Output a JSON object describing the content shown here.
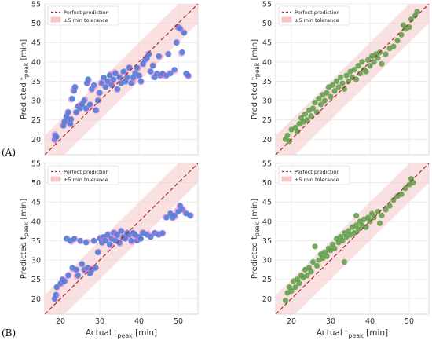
{
  "panel_labels": [
    "(A)",
    "(B)"
  ],
  "chart_data": [
    {
      "type": "scatter",
      "panel": "A",
      "position": "left",
      "xlabel": "",
      "ylabel": "Predicted t_peak [min]",
      "ylabel_main": "Predicted t",
      "ylabel_sub": "peak",
      "ylabel_unit": " [min]",
      "xlim": [
        16,
        55
      ],
      "ylim": [
        16,
        55
      ],
      "xticks": [
        20,
        30,
        40,
        50
      ],
      "yticks": [
        20,
        25,
        30,
        35,
        40,
        45,
        50,
        55
      ],
      "show_xtick_labels": false,
      "grid": true,
      "legend": {
        "placement": "top-left",
        "entries": [
          "Perfect prediction",
          "±5 min tolerance"
        ]
      },
      "colors": {
        "points": "#4a7fd6",
        "halo": "#e070d8",
        "line": "#a52a2a",
        "band": "#f6c8c8"
      },
      "seed": 11,
      "points": [
        [
          18.5,
          20.0
        ],
        [
          18.7,
          21.0
        ],
        [
          19.0,
          20.6
        ],
        [
          20.8,
          23.5
        ],
        [
          21.0,
          24.5
        ],
        [
          21.5,
          26.0
        ],
        [
          21.8,
          25.0
        ],
        [
          22.0,
          27.0
        ],
        [
          22.5,
          24.0
        ],
        [
          22.7,
          25.2
        ],
        [
          23.0,
          30.5
        ],
        [
          23.5,
          32.5
        ],
        [
          23.7,
          33.5
        ],
        [
          24.0,
          27.0
        ],
        [
          24.5,
          28.5
        ],
        [
          25.0,
          28.0
        ],
        [
          25.5,
          29.0
        ],
        [
          26.0,
          30.0
        ],
        [
          26.5,
          28.0
        ],
        [
          26.7,
          34.5
        ],
        [
          27.0,
          35.5
        ],
        [
          27.5,
          29.0
        ],
        [
          28.0,
          33.0
        ],
        [
          28.5,
          34.0
        ],
        [
          29.0,
          27.5
        ],
        [
          29.5,
          30.0
        ],
        [
          30.0,
          32.0
        ],
        [
          30.5,
          34.5
        ],
        [
          31.0,
          36.0
        ],
        [
          31.5,
          33.5
        ],
        [
          32.0,
          35.0
        ],
        [
          32.5,
          36.5
        ],
        [
          33.0,
          34.0
        ],
        [
          33.5,
          35.5
        ],
        [
          34.0,
          37.0
        ],
        [
          34.5,
          33.0
        ],
        [
          35.0,
          36.0
        ],
        [
          35.5,
          34.5
        ],
        [
          36.0,
          37.5
        ],
        [
          36.5,
          35.0
        ],
        [
          37.0,
          36.0
        ],
        [
          37.5,
          38.5
        ],
        [
          38.0,
          34.5
        ],
        [
          38.5,
          36.0
        ],
        [
          39.0,
          37.0
        ],
        [
          39.5,
          38.5
        ],
        [
          40.0,
          36.5
        ],
        [
          40.5,
          35.0
        ],
        [
          41.0,
          39.5
        ],
        [
          41.5,
          40.5
        ],
        [
          42.0,
          41.0
        ],
        [
          42.5,
          42.0
        ],
        [
          43.0,
          37.5
        ],
        [
          43.5,
          39.0
        ],
        [
          44.0,
          36.0
        ],
        [
          44.5,
          37.0
        ],
        [
          45.0,
          41.5
        ],
        [
          45.5,
          36.5
        ],
        [
          46.0,
          37.0
        ],
        [
          47.0,
          36.5
        ],
        [
          48.0,
          37.0
        ],
        [
          49.0,
          38.0
        ],
        [
          49.5,
          45.0
        ],
        [
          50.0,
          49.0
        ],
        [
          50.5,
          48.5
        ],
        [
          51.0,
          42.5
        ],
        [
          51.5,
          47.5
        ],
        [
          52.0,
          37.0
        ],
        [
          52.5,
          36.5
        ],
        [
          47.5,
          42.0
        ]
      ]
    },
    {
      "type": "scatter",
      "panel": "A",
      "position": "right",
      "xlabel": "",
      "ylabel": "Predicted t_peak [min]",
      "ylabel_main": "Predicted t",
      "ylabel_sub": "peak",
      "ylabel_unit": " [min]",
      "xlim": [
        16,
        55
      ],
      "ylim": [
        16,
        55
      ],
      "xticks": [
        20,
        30,
        40,
        50
      ],
      "yticks": [
        20,
        25,
        30,
        35,
        40,
        45,
        50,
        55
      ],
      "show_xtick_labels": false,
      "grid": true,
      "legend": {
        "placement": "top-left",
        "entries": [
          "Perfect prediction",
          "±5 min tolerance"
        ]
      },
      "colors": {
        "points": "#5e9e4a",
        "halo": "",
        "line": "#a52a2a",
        "band": "#f6c8c8"
      },
      "seed": 23,
      "points": [
        [
          18.5,
          20.0
        ],
        [
          19.0,
          21.0
        ],
        [
          19.5,
          19.5
        ],
        [
          20.0,
          22.5
        ],
        [
          21.0,
          23.0
        ],
        [
          21.5,
          22.0
        ],
        [
          22.0,
          24.0
        ],
        [
          22.5,
          25.5
        ],
        [
          23.0,
          24.5
        ],
        [
          23.5,
          26.5
        ],
        [
          24.0,
          25.0
        ],
        [
          24.5,
          27.5
        ],
        [
          25.0,
          26.0
        ],
        [
          25.5,
          28.0
        ],
        [
          26.0,
          29.5
        ],
        [
          26.5,
          27.0
        ],
        [
          27.0,
          30.5
        ],
        [
          27.5,
          29.0
        ],
        [
          28.0,
          31.5
        ],
        [
          28.5,
          30.0
        ],
        [
          29.0,
          32.0
        ],
        [
          29.5,
          33.5
        ],
        [
          30.0,
          31.0
        ],
        [
          30.5,
          34.0
        ],
        [
          31.0,
          32.5
        ],
        [
          31.5,
          35.0
        ],
        [
          32.0,
          33.5
        ],
        [
          32.5,
          36.0
        ],
        [
          33.0,
          34.5
        ],
        [
          33.5,
          33.0
        ],
        [
          34.0,
          36.5
        ],
        [
          34.5,
          35.0
        ],
        [
          35.0,
          37.5
        ],
        [
          35.5,
          36.0
        ],
        [
          36.0,
          38.0
        ],
        [
          36.5,
          35.5
        ],
        [
          37.0,
          39.0
        ],
        [
          37.5,
          37.0
        ],
        [
          38.0,
          40.0
        ],
        [
          38.5,
          38.0
        ],
        [
          39.0,
          37.5
        ],
        [
          39.5,
          40.5
        ],
        [
          40.0,
          39.0
        ],
        [
          40.5,
          41.5
        ],
        [
          41.0,
          40.0
        ],
        [
          41.5,
          42.0
        ],
        [
          42.0,
          41.0
        ],
        [
          42.5,
          42.5
        ],
        [
          43.0,
          39.5
        ],
        [
          44.0,
          42.0
        ],
        [
          45.0,
          43.5
        ],
        [
          46.0,
          44.0
        ],
        [
          47.0,
          45.5
        ],
        [
          48.0,
          47.0
        ],
        [
          49.0,
          48.5
        ],
        [
          50.0,
          49.0
        ],
        [
          50.5,
          51.0
        ],
        [
          51.5,
          52.0
        ],
        [
          52.0,
          53.0
        ],
        [
          48.5,
          49.5
        ]
      ]
    },
    {
      "type": "scatter",
      "panel": "B",
      "position": "left",
      "xlabel": "Actual t_peak [min]",
      "xlabel_main": "Actual t",
      "xlabel_sub": "peak",
      "xlabel_unit": " [min]",
      "ylabel": "Predicted t_peak [min]",
      "ylabel_main": "Predicted t",
      "ylabel_sub": "peak",
      "ylabel_unit": " [min]",
      "xlim": [
        16,
        55
      ],
      "ylim": [
        16,
        55
      ],
      "xticks": [
        20,
        30,
        40,
        50
      ],
      "yticks": [
        20,
        25,
        30,
        35,
        40,
        45,
        50,
        55
      ],
      "show_xtick_labels": true,
      "grid": true,
      "legend": {
        "placement": "top-left",
        "entries": [
          "Perfect prediction",
          "±5 min tolerance"
        ]
      },
      "colors": {
        "points": "#4a7fd6",
        "halo": "#e070d8",
        "line": "#a52a2a",
        "band": "#f6c8c8"
      },
      "seed": 37,
      "points": [
        [
          18.5,
          20.0
        ],
        [
          18.8,
          21.0
        ],
        [
          19.0,
          23.0
        ],
        [
          20.0,
          24.0
        ],
        [
          20.5,
          25.0
        ],
        [
          21.0,
          24.5
        ],
        [
          21.5,
          35.5
        ],
        [
          22.0,
          26.0
        ],
        [
          22.5,
          35.0
        ],
        [
          23.0,
          28.0
        ],
        [
          23.5,
          35.5
        ],
        [
          24.0,
          27.5
        ],
        [
          24.5,
          26.0
        ],
        [
          25.0,
          35.0
        ],
        [
          25.5,
          29.0
        ],
        [
          26.0,
          27.5
        ],
        [
          26.5,
          34.5
        ],
        [
          27.0,
          28.0
        ],
        [
          27.5,
          26.5
        ],
        [
          28.0,
          27.5
        ],
        [
          28.5,
          35.0
        ],
        [
          29.0,
          28.0
        ],
        [
          29.5,
          32.0
        ],
        [
          30.0,
          35.5
        ],
        [
          30.5,
          34.5
        ],
        [
          31.0,
          36.0
        ],
        [
          31.5,
          35.0
        ],
        [
          32.0,
          36.5
        ],
        [
          32.5,
          34.0
        ],
        [
          33.0,
          35.5
        ],
        [
          33.5,
          37.0
        ],
        [
          34.0,
          35.0
        ],
        [
          34.5,
          36.5
        ],
        [
          35.0,
          34.5
        ],
        [
          35.5,
          37.5
        ],
        [
          36.0,
          36.0
        ],
        [
          36.5,
          35.5
        ],
        [
          37.0,
          37.0
        ],
        [
          37.5,
          36.5
        ],
        [
          38.0,
          35.0
        ],
        [
          38.5,
          37.0
        ],
        [
          39.0,
          36.5
        ],
        [
          39.5,
          35.0
        ],
        [
          40.0,
          36.0
        ],
        [
          40.5,
          35.5
        ],
        [
          41.0,
          37.0
        ],
        [
          42.0,
          36.5
        ],
        [
          43.0,
          36.0
        ],
        [
          44.0,
          37.0
        ],
        [
          45.0,
          36.5
        ],
        [
          46.0,
          37.0
        ],
        [
          47.0,
          41.0
        ],
        [
          48.0,
          42.0
        ],
        [
          49.0,
          41.5
        ],
        [
          50.0,
          42.5
        ],
        [
          50.5,
          44.0
        ],
        [
          51.0,
          43.0
        ],
        [
          52.0,
          42.0
        ],
        [
          53.0,
          41.5
        ],
        [
          48.5,
          41.0
        ]
      ]
    },
    {
      "type": "scatter",
      "panel": "B",
      "position": "right",
      "xlabel": "Actual t_peak [min]",
      "xlabel_main": "Actual t",
      "xlabel_sub": "peak",
      "xlabel_unit": " [min]",
      "ylabel": "Predicted t_peak [min]",
      "ylabel_main": "Predicted t",
      "ylabel_sub": "peak",
      "ylabel_unit": " [min]",
      "xlim": [
        16,
        55
      ],
      "ylim": [
        16,
        55
      ],
      "xticks": [
        20,
        30,
        40,
        50
      ],
      "yticks": [
        20,
        25,
        30,
        35,
        40,
        45,
        50,
        55
      ],
      "show_xtick_labels": true,
      "grid": true,
      "legend": {
        "placement": "top-left",
        "entries": [
          "Perfect prediction",
          "±5 min tolerance"
        ]
      },
      "colors": {
        "points": "#5e9e4a",
        "halo": "",
        "line": "#a52a2a",
        "band": "#f6c8c8"
      },
      "seed": 53,
      "points": [
        [
          18.5,
          19.5
        ],
        [
          19.0,
          21.5
        ],
        [
          19.5,
          23.0
        ],
        [
          20.0,
          22.0
        ],
        [
          20.5,
          24.5
        ],
        [
          21.0,
          23.0
        ],
        [
          21.5,
          25.0
        ],
        [
          22.0,
          24.0
        ],
        [
          22.5,
          26.0
        ],
        [
          23.0,
          25.5
        ],
        [
          23.5,
          27.5
        ],
        [
          24.0,
          26.0
        ],
        [
          24.5,
          28.0
        ],
        [
          25.0,
          27.0
        ],
        [
          25.5,
          29.5
        ],
        [
          26.0,
          33.5
        ],
        [
          26.5,
          28.5
        ],
        [
          27.0,
          30.0
        ],
        [
          27.5,
          31.5
        ],
        [
          28.0,
          30.5
        ],
        [
          28.5,
          32.0
        ],
        [
          29.0,
          31.0
        ],
        [
          29.5,
          33.0
        ],
        [
          30.0,
          32.5
        ],
        [
          30.5,
          34.0
        ],
        [
          31.0,
          33.0
        ],
        [
          31.5,
          35.5
        ],
        [
          32.0,
          34.5
        ],
        [
          32.5,
          36.0
        ],
        [
          33.0,
          35.0
        ],
        [
          33.5,
          37.0
        ],
        [
          34.0,
          36.0
        ],
        [
          34.5,
          37.5
        ],
        [
          35.0,
          36.5
        ],
        [
          35.5,
          38.5
        ],
        [
          36.0,
          37.0
        ],
        [
          36.5,
          39.0
        ],
        [
          37.0,
          38.0
        ],
        [
          37.5,
          40.0
        ],
        [
          38.0,
          39.0
        ],
        [
          38.5,
          40.5
        ],
        [
          39.0,
          38.5
        ],
        [
          39.5,
          41.0
        ],
        [
          40.0,
          40.0
        ],
        [
          40.5,
          42.0
        ],
        [
          41.0,
          41.0
        ],
        [
          42.0,
          42.5
        ],
        [
          43.0,
          41.5
        ],
        [
          44.0,
          43.0
        ],
        [
          45.0,
          44.0
        ],
        [
          46.0,
          45.5
        ],
        [
          47.0,
          46.5
        ],
        [
          48.0,
          47.0
        ],
        [
          49.0,
          48.5
        ],
        [
          50.0,
          49.5
        ],
        [
          50.5,
          51.0
        ],
        [
          51.0,
          50.0
        ],
        [
          33.5,
          29.5
        ],
        [
          36.5,
          41.5
        ],
        [
          42.5,
          39.5
        ]
      ]
    }
  ]
}
